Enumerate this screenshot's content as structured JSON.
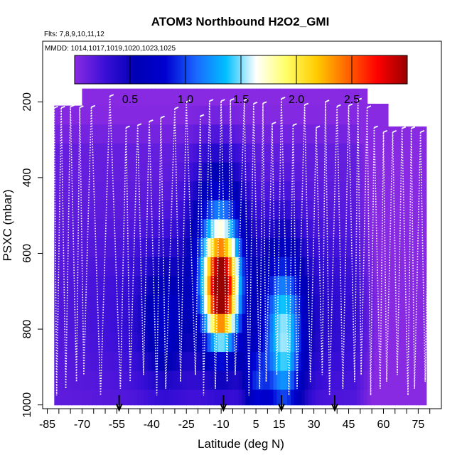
{
  "chart_data": {
    "type": "heatmap",
    "title": "ATOM3 Northbound H2O2_GMI",
    "flights_note": "Flts: 7,8,9,10,11,12",
    "dates_note": "MMDD: 1014,1017,1019,1020,1023,1025",
    "xlabel": "Latitude (deg N)",
    "ylabel": "PSXC (mbar)",
    "xlim": [
      -87,
      85
    ],
    "ylim": [
      1010,
      40
    ],
    "x_ticks": [
      -85,
      -70,
      -55,
      -40,
      -25,
      -10,
      5,
      15,
      30,
      45,
      60,
      75
    ],
    "y_ticks": [
      200,
      400,
      600,
      800,
      1000
    ],
    "colorbar": {
      "range": [
        0,
        3
      ],
      "ticks": [
        0.5,
        1.0,
        1.5,
        2.0,
        2.5
      ],
      "tick_labels": [
        "0.5",
        "1.0",
        "1.5",
        "2.0",
        "2.5"
      ],
      "colors": [
        "#8a2be2",
        "#3b0fd8",
        "#0000b4",
        "#0000d0",
        "#1a66ff",
        "#00bfff",
        "#ffffff",
        "#ffff66",
        "#ffcc00",
        "#ff6600",
        "#ff0000",
        "#990000"
      ]
    },
    "arrow_latitudes": [
      -54,
      -9,
      16,
      39
    ],
    "color_white": "#ffffff",
    "color_black": "#000000"
  }
}
